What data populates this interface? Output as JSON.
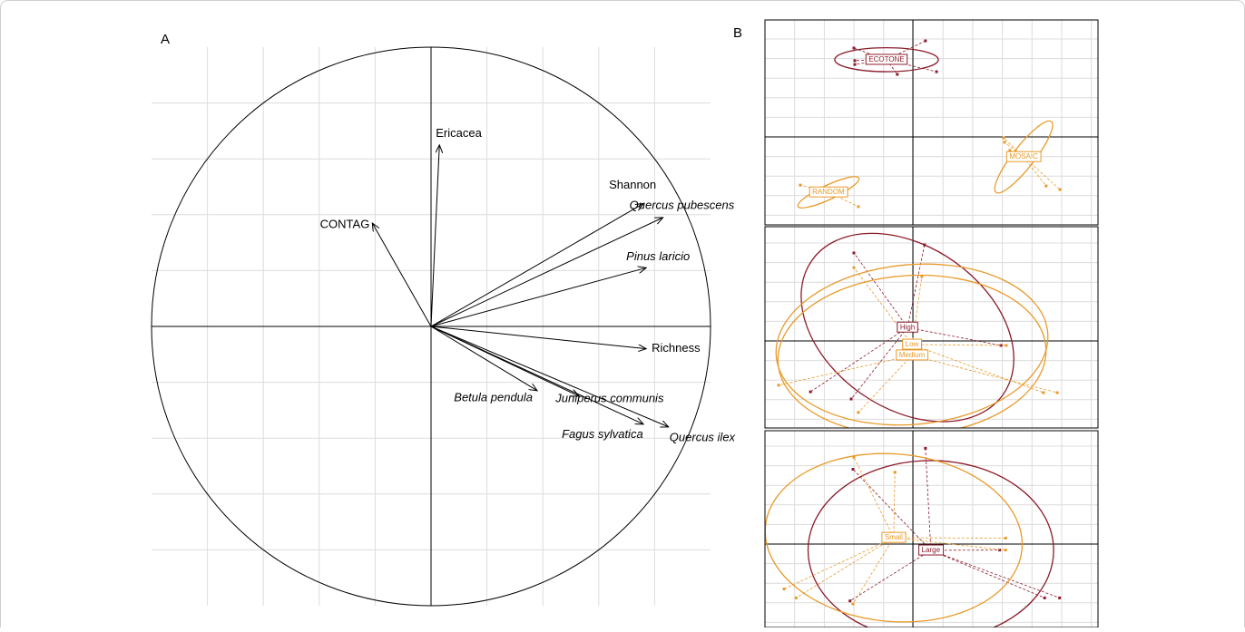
{
  "chart_data": [
    {
      "type": "biplot",
      "panel_label": "A",
      "xlim": [
        -1,
        1
      ],
      "ylim": [
        -1,
        1
      ],
      "grid": true,
      "color": "#000000",
      "vectors": [
        {
          "name": "Ericacea",
          "x": 0.03,
          "y": 0.65,
          "italic": false
        },
        {
          "name": "CONTAG",
          "x": -0.21,
          "y": 0.37,
          "italic": false
        },
        {
          "name": "Shannon",
          "x": 0.76,
          "y": 0.44,
          "italic": false
        },
        {
          "name": "Quercus pubescens",
          "x": 0.83,
          "y": 0.39,
          "italic": true
        },
        {
          "name": "Pinus laricio",
          "x": 0.77,
          "y": 0.21,
          "italic": true
        },
        {
          "name": "Richness",
          "x": 0.77,
          "y": -0.08,
          "italic": false
        },
        {
          "name": "Betula pendula",
          "x": 0.38,
          "y": -0.23,
          "italic": true
        },
        {
          "name": "Juniperus communis",
          "x": 0.53,
          "y": -0.25,
          "italic": true
        },
        {
          "name": "Fagus sylvatica",
          "x": 0.76,
          "y": -0.35,
          "italic": true
        },
        {
          "name": "Quercus ilex",
          "x": 0.85,
          "y": -0.36,
          "italic": true
        }
      ]
    },
    {
      "type": "group-ellipses",
      "panel_label": "B",
      "panels": [
        {
          "groups": [
            {
              "name": "ECOTONE",
              "color": "#8b1c2c",
              "cx": -0.88,
              "cy": 2.58,
              "rx": 1.73,
              "ry": 0.4,
              "angle": 0,
              "points": [
                [
                  -1.97,
                  2.97
                ],
                [
                  -1.94,
                  2.55
                ],
                [
                  -1.94,
                  2.42
                ],
                [
                  0.42,
                  3.21
                ],
                [
                  -0.52,
                  2.09
                ],
                [
                  0.79,
                  2.18
                ]
              ]
            },
            {
              "name": "MOSAIC",
              "color": "#e89a2a",
              "cx": 3.7,
              "cy": -0.67,
              "rx": 1.5,
              "ry": 0.36,
              "angle": -52,
              "points": [
                [
                  3.03,
                  -0.03
                ],
                [
                  3.06,
                  -0.18
                ],
                [
                  3.24,
                  -0.45
                ],
                [
                  4.91,
                  -1.76
                ],
                [
                  4.45,
                  -1.64
                ]
              ]
            },
            {
              "name": "RANDOM",
              "color": "#e89a2a",
              "cx": -2.82,
              "cy": -1.85,
              "rx": 1.12,
              "ry": 0.24,
              "angle": -25,
              "points": [
                [
                  -3.76,
                  -1.61
                ],
                [
                  -1.82,
                  -2.33
                ]
              ]
            }
          ]
        },
        {
          "groups": [
            {
              "name": "High",
              "color": "#8b1c2c",
              "cx": -0.18,
              "cy": 0.45,
              "rx": 3.9,
              "ry": 2.7,
              "angle": 35,
              "points": [
                [
                  -1.97,
                  2.94
                ],
                [
                  0.39,
                  3.21
                ],
                [
                  -2.06,
                  -1.94
                ],
                [
                  -3.42,
                  -1.7
                ],
                [
                  2.94,
                  -0.15
                ]
              ]
            },
            {
              "name": "Low",
              "color": "#e89a2a",
              "cx": -0.03,
              "cy": -0.12,
              "rx": 4.55,
              "ry": 2.67,
              "angle": -5,
              "points": [
                [
                  -1.97,
                  2.45
                ],
                [
                  0.3,
                  2.15
                ],
                [
                  3.12,
                  -0.15
                ],
                [
                  4.36,
                  -1.73
                ]
              ]
            },
            {
              "name": "Medium",
              "color": "#e89a2a",
              "cx": -0.03,
              "cy": -0.48,
              "rx": 4.48,
              "ry": 2.67,
              "angle": -3,
              "points": [
                [
                  4.82,
                  -1.73
                ],
                [
                  -4.48,
                  -1.48
                ],
                [
                  -1.82,
                  -2.39
                ]
              ]
            }
          ]
        },
        {
          "groups": [
            {
              "name": "Large",
              "color": "#8b1c2c",
              "cx": 0.6,
              "cy": -0.21,
              "rx": 4.1,
              "ry": 3.0,
              "angle": 0,
              "points": [
                [
                  0.42,
                  3.2
                ],
                [
                  -2.0,
                  2.5
                ],
                [
                  -2.1,
                  -1.9
                ],
                [
                  2.9,
                  -0.2
                ],
                [
                  4.4,
                  -1.8
                ],
                [
                  4.9,
                  -1.8
                ]
              ]
            },
            {
              "name": "Small",
              "color": "#e89a2a",
              "cx": -0.64,
              "cy": 0.21,
              "rx": 4.3,
              "ry": 2.8,
              "angle": 5,
              "points": [
                [
                  -1.97,
                  2.9
                ],
                [
                  -0.6,
                  2.4
                ],
                [
                  3.1,
                  0.2
                ],
                [
                  3.1,
                  -0.2
                ],
                [
                  -4.3,
                  -1.5
                ],
                [
                  -3.9,
                  -1.8
                ],
                [
                  -2.0,
                  -2.0
                ]
              ]
            }
          ]
        }
      ]
    }
  ]
}
